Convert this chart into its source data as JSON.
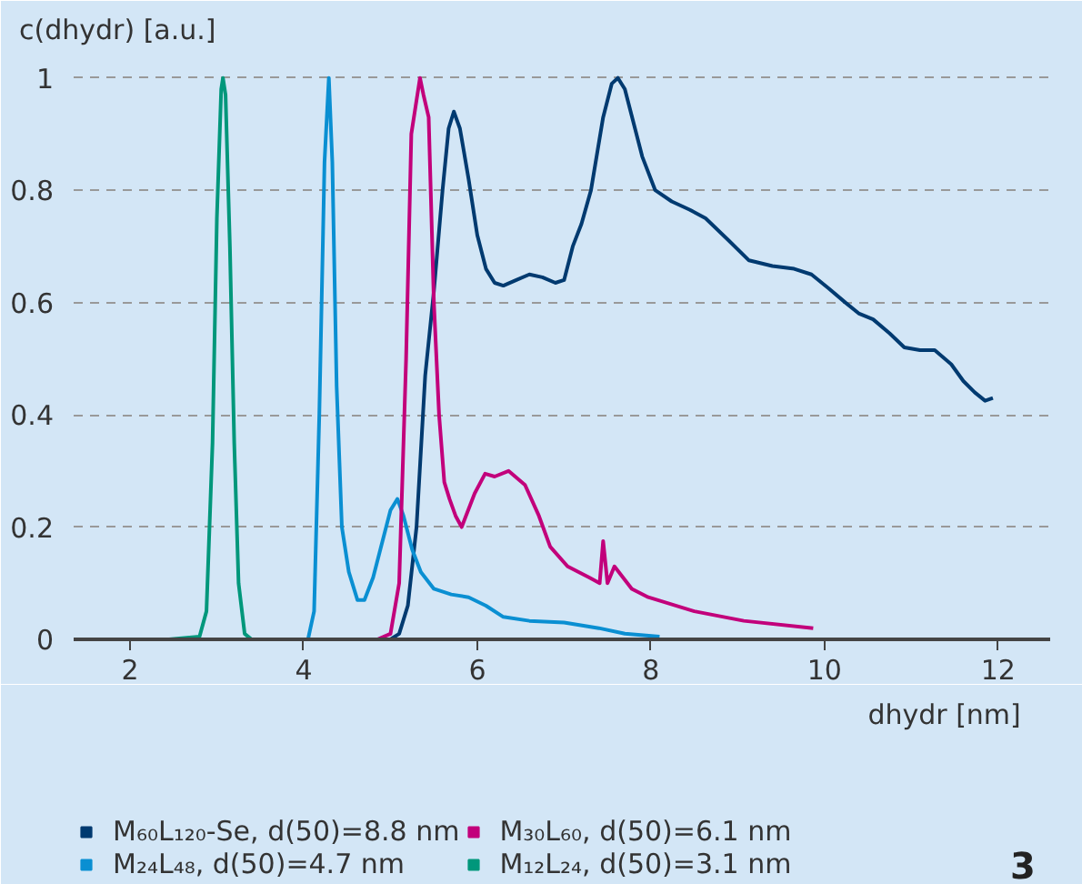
{
  "chart_data": {
    "type": "line",
    "ylabel": "c(dhydr) [a.u.]",
    "xlabel": "dhydr [nm]",
    "xlim": [
      1.35,
      12.6
    ],
    "ylim": [
      0,
      1.04
    ],
    "xticks": [
      2,
      4,
      6,
      8,
      10,
      12
    ],
    "yticks": [
      0,
      0.2,
      0.4,
      0.6,
      0.8,
      1
    ],
    "grid": "y",
    "legend": "bottom",
    "line_style": "solid",
    "marker": "none",
    "annotations": [
      "3"
    ],
    "series": [
      {
        "name": "M₆₀L₁₂₀-Se, d(50)=8.8 nm",
        "color": "#003a70",
        "x": [
          5.0,
          5.1,
          5.2,
          5.3,
          5.4,
          5.5,
          5.6,
          5.67,
          5.73,
          5.8,
          5.9,
          6.0,
          6.1,
          6.2,
          6.3,
          6.45,
          6.6,
          6.75,
          6.9,
          7.0,
          7.1,
          7.2,
          7.31,
          7.45,
          7.55,
          7.62,
          7.7,
          7.8,
          7.9,
          8.05,
          8.24,
          8.45,
          8.63,
          8.9,
          9.13,
          9.4,
          9.65,
          9.85,
          10.05,
          10.24,
          10.4,
          10.56,
          10.75,
          10.92,
          11.1,
          11.27,
          11.46,
          11.6,
          11.73,
          11.85,
          11.94
        ],
        "values": [
          0,
          0.01,
          0.06,
          0.2,
          0.47,
          0.62,
          0.8,
          0.91,
          0.94,
          0.91,
          0.82,
          0.72,
          0.66,
          0.635,
          0.63,
          0.64,
          0.65,
          0.645,
          0.635,
          0.64,
          0.7,
          0.74,
          0.8,
          0.93,
          0.99,
          1.0,
          0.98,
          0.92,
          0.86,
          0.8,
          0.78,
          0.765,
          0.75,
          0.71,
          0.675,
          0.665,
          0.66,
          0.65,
          0.625,
          0.6,
          0.58,
          0.57,
          0.545,
          0.52,
          0.515,
          0.515,
          0.49,
          0.46,
          0.44,
          0.425,
          0.43
        ]
      },
      {
        "name": "M₂₄L₄₈, d(50)=4.7 nm",
        "color": "#0a8fd2",
        "x": [
          3.9,
          4.05,
          4.12,
          4.18,
          4.24,
          4.29,
          4.33,
          4.38,
          4.44,
          4.52,
          4.62,
          4.7,
          4.8,
          4.9,
          5.0,
          5.08,
          5.15,
          5.25,
          5.35,
          5.5,
          5.7,
          5.9,
          6.1,
          6.3,
          6.6,
          7.0,
          7.4,
          7.7,
          8.1
        ],
        "values": [
          0,
          0,
          0.05,
          0.4,
          0.85,
          1.0,
          0.85,
          0.45,
          0.2,
          0.12,
          0.07,
          0.07,
          0.11,
          0.17,
          0.23,
          0.25,
          0.22,
          0.16,
          0.12,
          0.09,
          0.08,
          0.075,
          0.06,
          0.04,
          0.033,
          0.03,
          0.02,
          0.01,
          0.005
        ]
      },
      {
        "name": "M₃₀L₆₀, d(50)=6.1 nm",
        "color": "#c2007b",
        "x": [
          4.85,
          5.0,
          5.1,
          5.18,
          5.24,
          5.29,
          5.34,
          5.38,
          5.44,
          5.5,
          5.56,
          5.62,
          5.68,
          5.75,
          5.82,
          5.97,
          6.09,
          6.2,
          6.36,
          6.55,
          6.71,
          6.84,
          7.04,
          7.29,
          7.41,
          7.45,
          7.5,
          7.58,
          7.78,
          7.97,
          8.5,
          9.07,
          9.87
        ],
        "values": [
          0,
          0.01,
          0.1,
          0.5,
          0.9,
          0.95,
          1.0,
          0.97,
          0.93,
          0.6,
          0.4,
          0.28,
          0.25,
          0.22,
          0.2,
          0.26,
          0.295,
          0.29,
          0.3,
          0.275,
          0.22,
          0.165,
          0.13,
          0.11,
          0.1,
          0.175,
          0.1,
          0.13,
          0.09,
          0.075,
          0.05,
          0.033,
          0.02
        ]
      },
      {
        "name": "M₁₂L₂₄, d(50)=3.1 nm",
        "color": "#00977b",
        "x": [
          2.45,
          2.8,
          2.88,
          2.95,
          3.0,
          3.05,
          3.07,
          3.1,
          3.15,
          3.2,
          3.25,
          3.32,
          3.4
        ],
        "values": [
          0,
          0.005,
          0.05,
          0.35,
          0.75,
          0.98,
          1.0,
          0.97,
          0.7,
          0.35,
          0.1,
          0.01,
          0
        ]
      }
    ]
  }
}
